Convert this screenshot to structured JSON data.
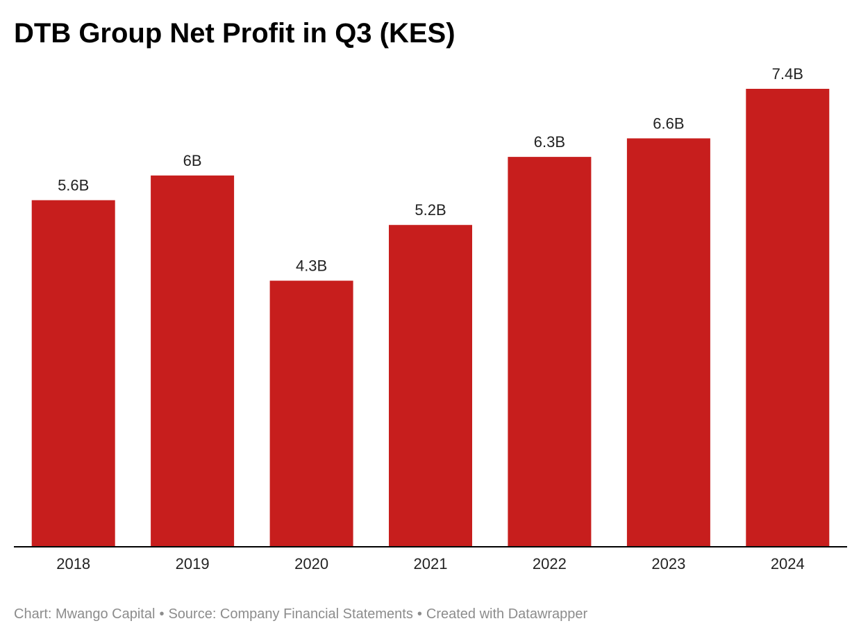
{
  "chart_data": {
    "type": "bar",
    "title": "DTB Group Net Profit in Q3 (KES)",
    "categories": [
      "2018",
      "2019",
      "2020",
      "2021",
      "2022",
      "2023",
      "2024"
    ],
    "values": [
      5.6,
      6.0,
      4.3,
      5.2,
      6.3,
      6.6,
      7.4
    ],
    "value_labels": [
      "5.6B",
      "6B",
      "4.3B",
      "5.2B",
      "6.3B",
      "6.6B",
      "7.4B"
    ],
    "xlabel": "",
    "ylabel": "",
    "ylim": [
      0,
      7.4
    ],
    "grid": false,
    "legend": "none",
    "bar_color": "#c71e1d",
    "axis_color": "#000000"
  },
  "footer": {
    "chart_credit": "Chart: Mwango Capital",
    "source": "Source: Company Financial Statements",
    "created_with": "Created with Datawrapper",
    "separator": "•"
  }
}
